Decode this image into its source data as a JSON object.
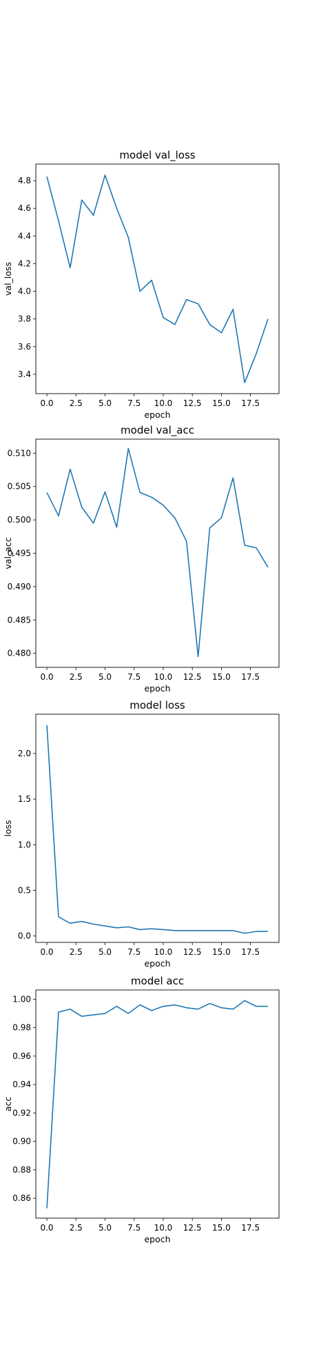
{
  "chart_data": [
    {
      "type": "line",
      "title": "model val_loss",
      "xlabel": "epoch",
      "ylabel": "val_loss",
      "xlim": [
        -0.95,
        19.95
      ],
      "ylim": [
        3.26,
        4.92
      ],
      "xticks": [
        0,
        2.5,
        5,
        7.5,
        10,
        12.5,
        15,
        17.5
      ],
      "xtick_labels": [
        "0.0",
        "2.5",
        "5.0",
        "7.5",
        "10.0",
        "12.5",
        "15.0",
        "17.5"
      ],
      "yticks": [
        3.4,
        3.6,
        3.8,
        4.0,
        4.2,
        4.4,
        4.6,
        4.8
      ],
      "ytick_labels": [
        "3.4",
        "3.6",
        "3.8",
        "4.0",
        "4.2",
        "4.4",
        "4.6",
        "4.8"
      ],
      "color": "#1f77b4",
      "x": [
        0,
        1,
        2,
        3,
        4,
        5,
        6,
        7,
        8,
        9,
        10,
        11,
        12,
        13,
        14,
        15,
        16,
        17,
        18,
        19
      ],
      "values": [
        4.83,
        4.51,
        4.17,
        4.66,
        4.55,
        4.84,
        4.6,
        4.39,
        4.0,
        4.08,
        3.81,
        3.76,
        3.94,
        3.91,
        3.76,
        3.7,
        3.87,
        3.34,
        3.55,
        3.8
      ]
    },
    {
      "type": "line",
      "title": "model val_acc",
      "xlabel": "epoch",
      "ylabel": "val_acc",
      "xlim": [
        -0.95,
        19.95
      ],
      "ylim": [
        0.4779,
        0.5121
      ],
      "xticks": [
        0,
        2.5,
        5,
        7.5,
        10,
        12.5,
        15,
        17.5
      ],
      "xtick_labels": [
        "0.0",
        "2.5",
        "5.0",
        "7.5",
        "10.0",
        "12.5",
        "15.0",
        "17.5"
      ],
      "yticks": [
        0.48,
        0.485,
        0.49,
        0.495,
        0.5,
        0.505,
        0.51
      ],
      "ytick_labels": [
        "0.480",
        "0.485",
        "0.490",
        "0.495",
        "0.500",
        "0.505",
        "0.510"
      ],
      "color": "#1f77b4",
      "x": [
        0,
        1,
        2,
        3,
        4,
        5,
        6,
        7,
        8,
        9,
        10,
        11,
        12,
        13,
        14,
        15,
        16,
        17,
        18,
        19
      ],
      "values": [
        0.5041,
        0.5006,
        0.5076,
        0.5019,
        0.4995,
        0.5042,
        0.4989,
        0.5107,
        0.5041,
        0.5034,
        0.5022,
        0.5003,
        0.4968,
        0.4795,
        0.4988,
        0.5003,
        0.5063,
        0.4962,
        0.4958,
        0.4929
      ]
    },
    {
      "type": "line",
      "title": "model loss",
      "xlabel": "epoch",
      "ylabel": "loss",
      "xlim": [
        -0.95,
        19.95
      ],
      "ylim": [
        -0.07,
        2.43
      ],
      "xticks": [
        0,
        2.5,
        5,
        7.5,
        10,
        12.5,
        15,
        17.5
      ],
      "xtick_labels": [
        "0.0",
        "2.5",
        "5.0",
        "7.5",
        "10.0",
        "12.5",
        "15.0",
        "17.5"
      ],
      "yticks": [
        0.0,
        0.5,
        1.0,
        1.5,
        2.0
      ],
      "ytick_labels": [
        "0.0",
        "0.5",
        "1.0",
        "1.5",
        "2.0"
      ],
      "color": "#1f77b4",
      "x": [
        0,
        1,
        2,
        3,
        4,
        5,
        6,
        7,
        8,
        9,
        10,
        11,
        12,
        13,
        14,
        15,
        16,
        17,
        18,
        19
      ],
      "values": [
        2.31,
        0.21,
        0.14,
        0.16,
        0.13,
        0.11,
        0.09,
        0.1,
        0.07,
        0.08,
        0.07,
        0.06,
        0.06,
        0.06,
        0.06,
        0.06,
        0.06,
        0.03,
        0.05,
        0.05
      ]
    },
    {
      "type": "line",
      "title": "model acc",
      "xlabel": "epoch",
      "ylabel": "acc",
      "xlim": [
        -0.95,
        19.95
      ],
      "ylim": [
        0.846,
        1.0065
      ],
      "xticks": [
        0,
        2.5,
        5,
        7.5,
        10,
        12.5,
        15,
        17.5
      ],
      "xtick_labels": [
        "0.0",
        "2.5",
        "5.0",
        "7.5",
        "10.0",
        "12.5",
        "15.0",
        "17.5"
      ],
      "yticks": [
        0.86,
        0.88,
        0.9,
        0.92,
        0.94,
        0.96,
        0.98,
        1.0
      ],
      "ytick_labels": [
        "0.86",
        "0.88",
        "0.90",
        "0.92",
        "0.94",
        "0.96",
        "0.98",
        "1.00"
      ],
      "color": "#1f77b4",
      "x": [
        0,
        1,
        2,
        3,
        4,
        5,
        6,
        7,
        8,
        9,
        10,
        11,
        12,
        13,
        14,
        15,
        16,
        17,
        18,
        19
      ],
      "values": [
        0.853,
        0.991,
        0.993,
        0.988,
        0.989,
        0.99,
        0.995,
        0.99,
        0.996,
        0.992,
        0.995,
        0.996,
        0.994,
        0.993,
        0.997,
        0.994,
        0.993,
        0.999,
        0.995,
        0.995
      ]
    }
  ]
}
